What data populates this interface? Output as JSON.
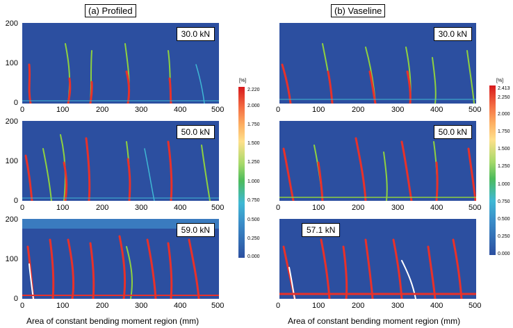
{
  "columns": [
    {
      "title": "(a) Profiled",
      "xlabel": "Area of constant bending moment region (mm)",
      "panels": [
        {
          "load": "30.0 kN",
          "xticks": [
            "0",
            "100",
            "200",
            "300",
            "400",
            "500"
          ],
          "yticks": [
            "200",
            "100",
            "0"
          ]
        },
        {
          "load": "50.0 kN",
          "xticks": [
            "0",
            "100",
            "200",
            "300",
            "400",
            "500"
          ],
          "yticks": [
            "200",
            "100",
            "0"
          ]
        },
        {
          "load": "59.0 kN",
          "xticks": [
            "0",
            "100",
            "200",
            "300",
            "400",
            "500"
          ],
          "yticks": [
            "200",
            "100",
            "0"
          ]
        }
      ],
      "colorbar": {
        "unit": "[%]",
        "ticks": [
          "2.220",
          "2.000",
          "1.750",
          "1.500",
          "1.250",
          "1.000",
          "0.750",
          "0.500",
          "0.250",
          "0.000"
        ]
      }
    },
    {
      "title": "(b) Vaseline",
      "xlabel": "Area of constant bending moment region (mm)",
      "panels": [
        {
          "load": "30.0 kN",
          "xticks": [
            "0",
            "100",
            "200",
            "300",
            "400",
            "500"
          ],
          "yticks": [
            "200",
            "100",
            "0"
          ]
        },
        {
          "load": "50.0 kN",
          "xticks": [
            "0",
            "100",
            "200",
            "300",
            "400",
            "500"
          ],
          "yticks": [
            "200",
            "100",
            "0"
          ]
        },
        {
          "load": "57.1 kN",
          "xticks": [
            "0",
            "100",
            "200",
            "300",
            "400",
            "500"
          ],
          "yticks": [
            "200",
            "100",
            "0"
          ]
        }
      ],
      "colorbar": {
        "unit": "[%]",
        "ticks": [
          "2.413",
          "2.250",
          "2.000",
          "1.750",
          "1.500",
          "1.250",
          "1.000",
          "0.750",
          "0.500",
          "0.250",
          "0.000"
        ]
      }
    }
  ],
  "colors": {
    "field_background": "#2c4fa0",
    "crack_low": "#3fb8d4",
    "crack_mid": "#8fd13f",
    "crack_high": "#e8312a"
  }
}
